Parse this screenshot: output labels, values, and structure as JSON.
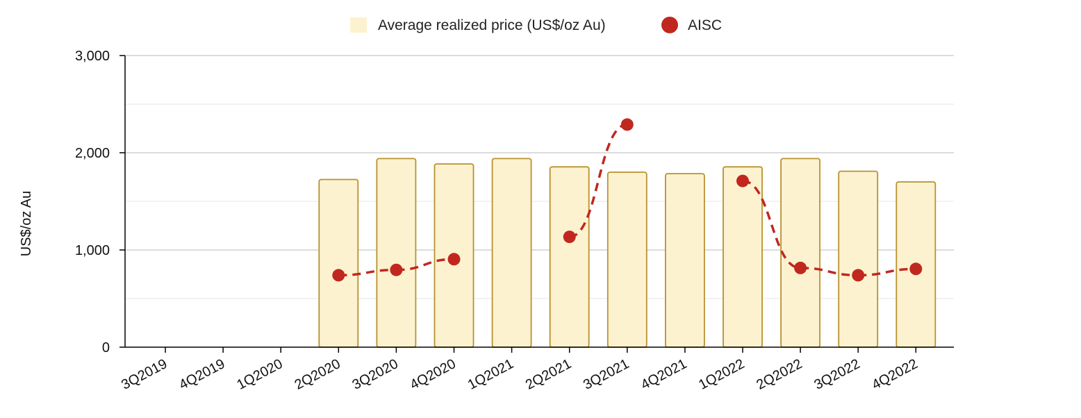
{
  "chart_data": {
    "type": "bar",
    "categories": [
      "3Q2019",
      "4Q2019",
      "1Q2020",
      "2Q2020",
      "3Q2020",
      "4Q2020",
      "1Q2021",
      "2Q2021",
      "3Q2021",
      "4Q2021",
      "1Q2022",
      "2Q2022",
      "3Q2022",
      "4Q2022"
    ],
    "series": [
      {
        "name": "Average realized price (US$/oz Au)",
        "type": "bar",
        "color": "#fdf2cf",
        "stroke": "#b8912e",
        "values": [
          null,
          null,
          null,
          1725,
          1940,
          1885,
          1940,
          1855,
          1800,
          1785,
          1855,
          1940,
          1810,
          1700
        ]
      },
      {
        "name": "AISC",
        "type": "line",
        "color": "#c0281f",
        "dashed": true,
        "values": [
          null,
          null,
          null,
          740,
          795,
          905,
          null,
          1135,
          2290,
          null,
          1710,
          815,
          740,
          805
        ]
      }
    ],
    "title": "",
    "xlabel": "",
    "ylabel": "US$/oz Au",
    "ylim": [
      0,
      3000
    ],
    "yticks": [
      0,
      1000,
      2000,
      3000
    ],
    "ytick_labels": [
      "0",
      "1,000",
      "2,000",
      "3,000"
    ],
    "grid": true,
    "legend_position": "top-center"
  }
}
